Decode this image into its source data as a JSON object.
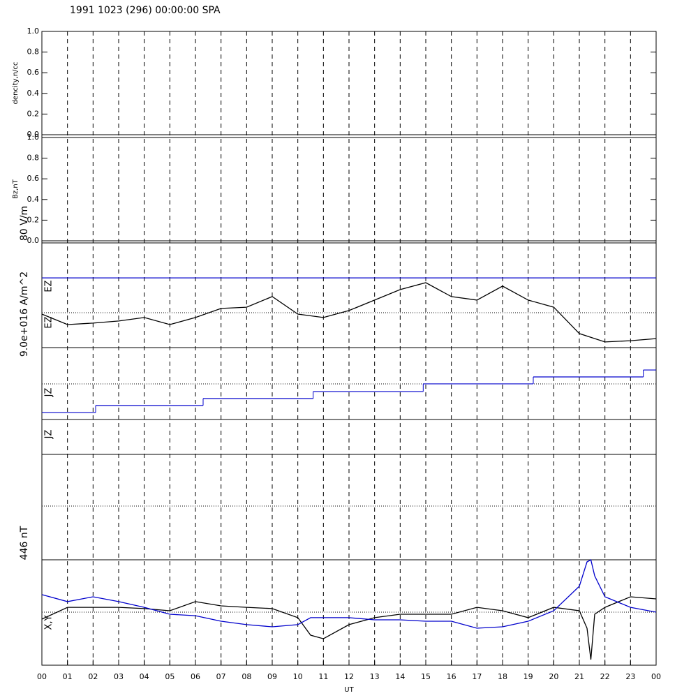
{
  "title": "1991 1023 (296) 00:00:00 SPA",
  "xaxis": {
    "label": "UT",
    "xlim": [
      0,
      24
    ],
    "xticks": [
      {
        "value": 0,
        "label": "00"
      },
      {
        "value": 1,
        "label": "01"
      },
      {
        "value": 2,
        "label": "02"
      },
      {
        "value": 3,
        "label": "03"
      },
      {
        "value": 4,
        "label": "04"
      },
      {
        "value": 5,
        "label": "05"
      },
      {
        "value": 6,
        "label": "06"
      },
      {
        "value": 7,
        "label": "07"
      },
      {
        "value": 8,
        "label": "08"
      },
      {
        "value": 9,
        "label": "09"
      },
      {
        "value": 10,
        "label": "10"
      },
      {
        "value": 11,
        "label": "11"
      },
      {
        "value": 12,
        "label": "12"
      },
      {
        "value": 13,
        "label": "13"
      },
      {
        "value": 14,
        "label": "14"
      },
      {
        "value": 15,
        "label": "15"
      },
      {
        "value": 16,
        "label": "16"
      },
      {
        "value": 17,
        "label": "17"
      },
      {
        "value": 18,
        "label": "18"
      },
      {
        "value": 19,
        "label": "19"
      },
      {
        "value": 20,
        "label": "20"
      },
      {
        "value": 21,
        "label": "21"
      },
      {
        "value": 22,
        "label": "22"
      },
      {
        "value": 23,
        "label": "23"
      },
      {
        "value": 24,
        "label": "00"
      }
    ]
  },
  "chart_data": [
    {
      "type": "line",
      "ylabel": "dencity,n/cc",
      "ylim": [
        0,
        1
      ],
      "yticks": [
        {
          "value": 0,
          "label": "0.0"
        },
        {
          "value": 0.2,
          "label": "0.2"
        },
        {
          "value": 0.4,
          "label": "0.4"
        },
        {
          "value": 0.6,
          "label": "0.6"
        },
        {
          "value": 0.8,
          "label": "0.8"
        },
        {
          "value": 1,
          "label": "1.0"
        }
      ]
    },
    {
      "type": "line",
      "ylabel": "Bz,nT",
      "ylim": [
        0,
        1
      ],
      "yticks": [
        {
          "value": 0,
          "label": "0.0"
        },
        {
          "value": 0.2,
          "label": "0.2"
        },
        {
          "value": 0.4,
          "label": "0.4"
        },
        {
          "value": 0.6,
          "label": "0.6"
        },
        {
          "value": 0.8,
          "label": "0.8"
        },
        {
          "value": 1,
          "label": "1.0"
        }
      ]
    },
    {
      "type": "line",
      "scale_label": "80 V/m",
      "ylim": [
        0,
        80
      ],
      "x": [
        0,
        1,
        2,
        3,
        4,
        5,
        6,
        7,
        8,
        9,
        10,
        11,
        12,
        13,
        14,
        15,
        16,
        17,
        18,
        19,
        20,
        21,
        22,
        23,
        24
      ],
      "series": [
        {
          "name": "EZ",
          "color": "#000000",
          "values": [
            25.6,
            17.6,
            18.7,
            20.3,
            23,
            17.6,
            23,
            29.9,
            30.9,
            39,
            25.6,
            23,
            28.3,
            36.3,
            44.3,
            49.6,
            39,
            36.3,
            47,
            36.3,
            30.9,
            10.7,
            4.3,
            5.3,
            6.9
          ]
        },
        {
          "name": "EZ",
          "color": "#0000cc",
          "x": [
            0,
            24
          ],
          "values": [
            53.3,
            53.3
          ]
        }
      ]
    },
    {
      "type": "step",
      "scale_label": "9.0e+016 A/m^2",
      "ylim": [
        0,
        9
      ],
      "series": [
        {
          "name": "JZ",
          "color": "#0000cc",
          "x": [
            0,
            2.1,
            6.3,
            10.6,
            14.9,
            19.2,
            23.5
          ],
          "values": [
            0.87,
            1.75,
            2.62,
            3.5,
            4.46,
            5.33,
            6.2
          ]
        }
      ]
    },
    {
      "type": "line",
      "ylabel": "JZ",
      "ylim": [
        0,
        1
      ]
    },
    {
      "type": "line",
      "scale_label": "446 nT",
      "ylabel": "X,Y",
      "ylim": [
        -446,
        446
      ],
      "x": [
        0,
        1,
        2,
        3,
        4,
        5,
        6,
        7,
        8,
        9,
        10,
        10.5,
        11,
        12,
        13,
        14,
        15,
        16,
        17,
        18,
        19,
        20,
        21,
        21.3,
        21.45,
        21.6,
        22,
        23,
        24
      ],
      "series": [
        {
          "color": "#000000",
          "values": [
            -56,
            44,
            44,
            44,
            33,
            15,
            92,
            56,
            44,
            33,
            -44,
            -192,
            -222,
            -103,
            -44,
            -15,
            -15,
            -15,
            44,
            15,
            -44,
            44,
            15,
            -133,
            -399,
            -15,
            44,
            133,
            115
          ]
        },
        {
          "color": "#0000cc",
          "values": [
            151,
            92,
            133,
            92,
            44,
            -15,
            -27,
            -74,
            -103,
            -121,
            -103,
            -44,
            -44,
            -44,
            -62,
            -62,
            -74,
            -74,
            -133,
            -121,
            -74,
            15,
            222,
            428,
            446,
            310,
            133,
            44,
            3
          ]
        }
      ]
    }
  ]
}
